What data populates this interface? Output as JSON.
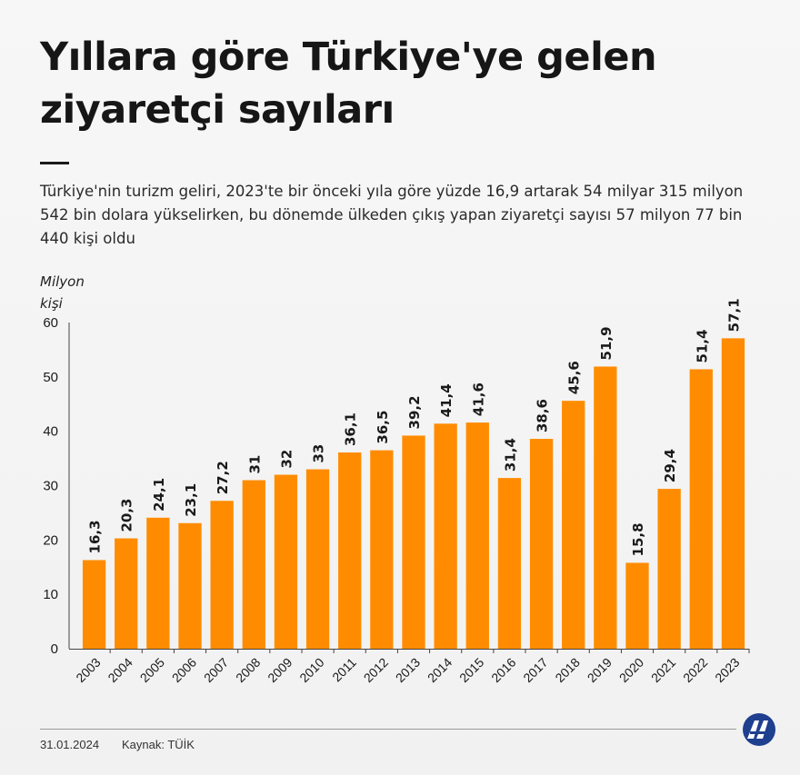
{
  "header": {
    "title": "Yıllara göre Türkiye'ye gelen ziyaretçi sayıları",
    "subtitle": "Türkiye'nin turizm geliri, 2023'te bir önceki yıla göre yüzde 16,9 artarak 54 milyar 315 milyon 542 bin dolara yükselirken, bu dönemde ülkeden çıkış yapan ziyaretçi sayısı 57 milyon 77 bin 440 kişi oldu",
    "unit_label": "Milyon kişi"
  },
  "footer": {
    "date": "31.01.2024",
    "source": "Kaynak: TÜİK",
    "logo_icon": "aa-logo-icon"
  },
  "colors": {
    "bar": "#ff8c00",
    "text": "#1a1a1a",
    "axis": "#555555"
  },
  "chart_data": {
    "type": "bar",
    "title": "Yıllara göre Türkiye'ye gelen ziyaretçi sayıları",
    "ylabel": "Milyon kişi",
    "xlabel": "",
    "ylim": [
      0,
      60
    ],
    "yticks": [
      0,
      10,
      20,
      30,
      40,
      50,
      60
    ],
    "grid": false,
    "categories": [
      "2003",
      "2004",
      "2005",
      "2006",
      "2007",
      "2008",
      "2009",
      "2010",
      "2011",
      "2012",
      "2013",
      "2014",
      "2015",
      "2016",
      "2017",
      "2018",
      "2019",
      "2020",
      "2021",
      "2022",
      "2023"
    ],
    "values": [
      16.3,
      20.3,
      24.1,
      23.1,
      27.2,
      31,
      32,
      33,
      36.1,
      36.5,
      39.2,
      41.4,
      41.6,
      31.4,
      38.6,
      45.6,
      51.9,
      15.8,
      29.4,
      51.4,
      57.1
    ],
    "value_labels": [
      "16,3",
      "20,3",
      "24,1",
      "23,1",
      "27,2",
      "31",
      "32",
      "33",
      "36,1",
      "36,5",
      "39,2",
      "41,4",
      "41,6",
      "31,4",
      "38,6",
      "45,6",
      "51,9",
      "15,8",
      "29,4",
      "51,4",
      "57,1"
    ]
  }
}
